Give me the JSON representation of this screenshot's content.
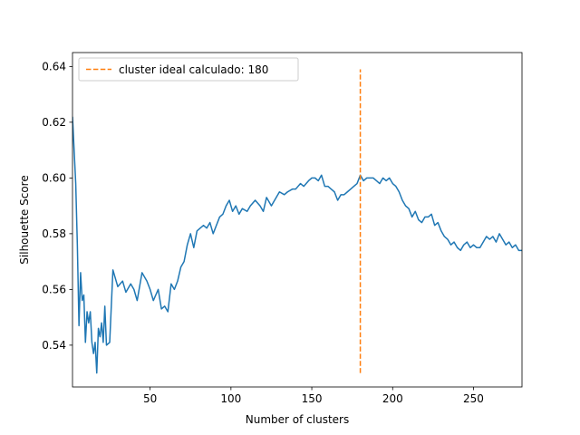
{
  "chart_data": {
    "type": "line",
    "title": "",
    "xlabel": "Number of clusters",
    "ylabel": "Silhouette Score",
    "xlim": [
      2,
      280
    ],
    "ylim": [
      0.525,
      0.645
    ],
    "xticks": [
      50,
      100,
      150,
      200,
      250
    ],
    "yticks": [
      0.54,
      0.56,
      0.58,
      0.6,
      0.62,
      0.64
    ],
    "ytick_labels": [
      "0.54",
      "0.56",
      "0.58",
      "0.60",
      "0.62",
      "0.64"
    ],
    "grid": false,
    "legend_position": "top-left",
    "series": [
      {
        "color": "#1f77b4",
        "style": "solid",
        "x": [
          2,
          4,
          5,
          6,
          7,
          8,
          9,
          10,
          11,
          12,
          13,
          14,
          15,
          16,
          17,
          18,
          19,
          20,
          21,
          22,
          23,
          25,
          27,
          30,
          33,
          35,
          38,
          40,
          42,
          45,
          48,
          50,
          52,
          55,
          57,
          59,
          61,
          63,
          65,
          67,
          69,
          71,
          73,
          75,
          77,
          79,
          81,
          83,
          85,
          87,
          89,
          91,
          93,
          95,
          97,
          99,
          101,
          103,
          105,
          107,
          110,
          112,
          115,
          118,
          120,
          122,
          125,
          128,
          130,
          133,
          135,
          138,
          140,
          143,
          145,
          148,
          150,
          152,
          154,
          156,
          158,
          160,
          162,
          164,
          166,
          168,
          170,
          172,
          174,
          176,
          178,
          180,
          182,
          184,
          186,
          188,
          190,
          192,
          194,
          196,
          198,
          200,
          202,
          204,
          206,
          208,
          210,
          212,
          214,
          216,
          218,
          220,
          222,
          224,
          226,
          228,
          230,
          232,
          234,
          236,
          238,
          240,
          242,
          244,
          246,
          248,
          250,
          252,
          254,
          256,
          258,
          260,
          262,
          264,
          266,
          268,
          270,
          272,
          274,
          276,
          278,
          280
        ],
        "y": [
          0.622,
          0.598,
          0.576,
          0.547,
          0.566,
          0.556,
          0.558,
          0.541,
          0.552,
          0.548,
          0.552,
          0.541,
          0.537,
          0.541,
          0.53,
          0.546,
          0.543,
          0.548,
          0.541,
          0.554,
          0.54,
          0.541,
          0.567,
          0.561,
          0.563,
          0.559,
          0.562,
          0.56,
          0.556,
          0.566,
          0.563,
          0.56,
          0.556,
          0.56,
          0.553,
          0.554,
          0.552,
          0.562,
          0.56,
          0.563,
          0.568,
          0.57,
          0.576,
          0.58,
          0.575,
          0.581,
          0.582,
          0.583,
          0.582,
          0.584,
          0.58,
          0.583,
          0.586,
          0.587,
          0.59,
          0.592,
          0.588,
          0.59,
          0.587,
          0.589,
          0.588,
          0.59,
          0.592,
          0.59,
          0.588,
          0.593,
          0.59,
          0.593,
          0.595,
          0.594,
          0.595,
          0.596,
          0.596,
          0.598,
          0.597,
          0.599,
          0.6,
          0.6,
          0.599,
          0.601,
          0.597,
          0.597,
          0.596,
          0.595,
          0.592,
          0.594,
          0.594,
          0.595,
          0.596,
          0.597,
          0.598,
          0.601,
          0.599,
          0.6,
          0.6,
          0.6,
          0.599,
          0.598,
          0.6,
          0.599,
          0.6,
          0.598,
          0.597,
          0.595,
          0.592,
          0.59,
          0.589,
          0.586,
          0.588,
          0.585,
          0.584,
          0.586,
          0.586,
          0.587,
          0.583,
          0.584,
          0.581,
          0.579,
          0.578,
          0.576,
          0.577,
          0.575,
          0.574,
          0.576,
          0.577,
          0.575,
          0.576,
          0.575,
          0.575,
          0.577,
          0.579,
          0.578,
          0.579,
          0.577,
          0.58,
          0.578,
          0.576,
          0.577,
          0.575,
          0.576,
          0.574,
          0.574
        ]
      },
      {
        "name": "cluster ideal calculado: 180",
        "color": "#ff7f0e",
        "style": "dashed",
        "x": [
          180,
          180
        ],
        "y": [
          0.53,
          0.639
        ]
      }
    ]
  }
}
